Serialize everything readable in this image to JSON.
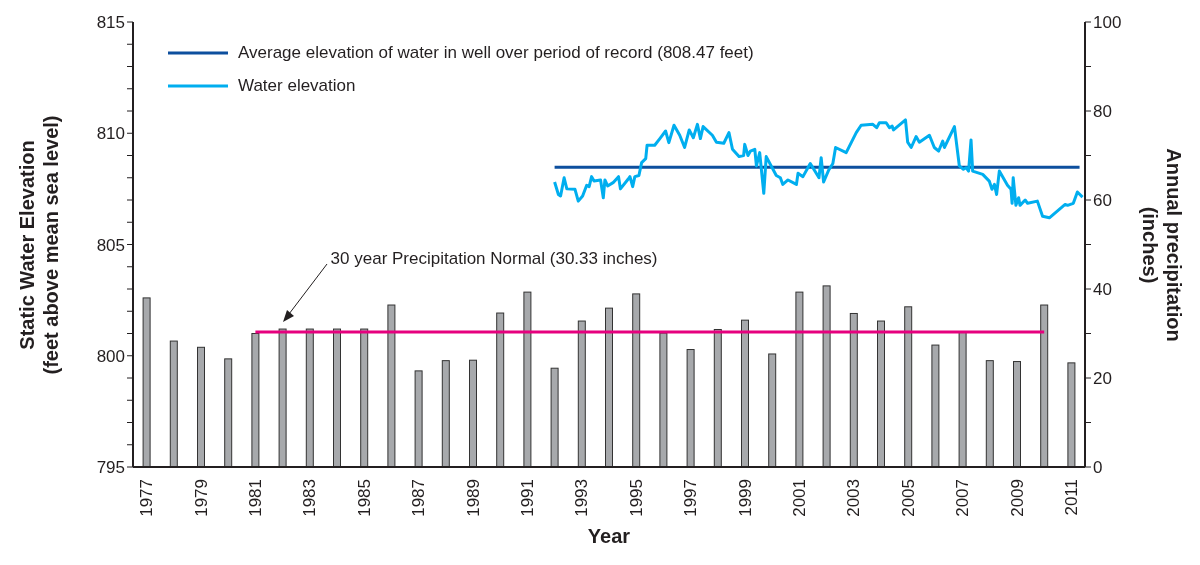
{
  "chart_data": {
    "type": "bar",
    "xlabel": "Year",
    "ylabel": "Static Water Elevation\n(feet above mean sea level)",
    "y2label": "Annual precipitation\n(inches)",
    "x": [
      1977,
      1978,
      1979,
      1980,
      1981,
      1982,
      1983,
      1984,
      1985,
      1986,
      1987,
      1988,
      1989,
      1990,
      1991,
      1992,
      1993,
      1994,
      1995,
      1996,
      1997,
      1998,
      1999,
      2000,
      2001,
      2002,
      2003,
      2004,
      2005,
      2006,
      2007,
      2008,
      2009,
      2010,
      2011
    ],
    "xlim": [
      1976.5,
      2011.5
    ],
    "xticks": [
      1977,
      1979,
      1981,
      1983,
      1985,
      1987,
      1989,
      1991,
      1993,
      1995,
      1997,
      1999,
      2001,
      2003,
      2005,
      2007,
      2009,
      2011
    ],
    "ylim": [
      795,
      815
    ],
    "yticks": [
      795,
      {
        "value": 796,
        "label": null
      },
      {
        "value": 797,
        "label": null
      },
      {
        "value": 798,
        "label": null
      },
      {
        "value": 799,
        "label": null
      },
      800,
      {
        "value": 801,
        "label": null
      },
      {
        "value": 802,
        "label": null
      },
      {
        "value": 803,
        "label": null
      },
      {
        "value": 804,
        "label": null
      },
      805,
      {
        "value": 806,
        "label": null
      },
      {
        "value": 807,
        "label": null
      },
      {
        "value": 808,
        "label": null
      },
      {
        "value": 809,
        "label": null
      },
      810,
      {
        "value": 811,
        "label": null
      },
      {
        "value": 812,
        "label": null
      },
      {
        "value": 813,
        "label": null
      },
      {
        "value": 814,
        "label": null
      },
      815
    ],
    "y2lim": [
      0,
      100
    ],
    "y2ticks": [
      0,
      {
        "value": 10,
        "label": null
      },
      20,
      {
        "value": 30,
        "label": null
      },
      40,
      {
        "value": 50,
        "label": null
      },
      60,
      {
        "value": 70,
        "label": null
      },
      80,
      {
        "value": 90,
        "label": null
      },
      100
    ],
    "legend": "top left",
    "marker": "none",
    "line_style": "solid",
    "annotations": [
      "30 year Precipitation Normal (30.33 inches)"
    ],
    "series": [
      {
        "axis": "y2",
        "color": "#a7a9ac",
        "values": [
          38.0,
          28.3,
          26.9,
          24.3,
          30.0,
          31.0,
          31.0,
          31.0,
          31.0,
          36.4,
          21.6,
          23.9,
          24.0,
          34.6,
          39.3,
          22.2,
          32.8,
          35.7,
          38.9,
          30.1,
          26.4,
          30.9,
          33.0,
          25.4,
          39.3,
          40.7,
          34.5,
          32.8,
          36.0,
          27.4,
          30.3,
          23.9,
          23.7,
          36.4,
          23.4
        ]
      },
      {
        "name": "Average elevation of water in well over period of record (808.47 feet)",
        "type": "line",
        "color": "#0d4f9e",
        "x": [
          1992.0,
          2011.3
        ],
        "values": [
          808.47,
          808.47
        ]
      },
      {
        "name": "Water elevation",
        "type": "line",
        "color": "#00aeef",
        "x": [
          1992.0,
          1992.14,
          1992.22,
          1992.35,
          1992.45,
          1992.75,
          1992.87,
          1993.03,
          1993.18,
          1993.27,
          1993.36,
          1993.45,
          1993.69,
          1993.79,
          1993.85,
          1993.95,
          1994.15,
          1994.35,
          1994.42,
          1994.7,
          1994.77,
          1994.87,
          1994.95,
          1995.1,
          1995.2,
          1995.35,
          1995.4,
          1995.68,
          1995.87,
          1996.08,
          1996.2,
          1996.39,
          1996.6,
          1996.78,
          1996.95,
          1997.1,
          1997.25,
          1997.36,
          1997.46,
          1997.8,
          1997.95,
          1998.22,
          1998.41,
          1998.54,
          1998.78,
          1998.95,
          1998.99,
          1999.11,
          1999.2,
          1999.36,
          1999.42,
          1999.54,
          1999.69,
          1999.78,
          2000.15,
          2000.3,
          2000.39,
          2000.58,
          2000.89,
          2000.95,
          2001.13,
          2001.4,
          2001.72,
          2001.8,
          2001.89,
          2002.08,
          2002.23,
          2002.33,
          2002.72,
          2003.09,
          2003.27,
          2003.7,
          2003.84,
          2003.94,
          2004.19,
          2004.31,
          2004.41,
          2004.46,
          2004.9,
          2004.98,
          2005.11,
          2005.29,
          2005.41,
          2005.78,
          2005.96,
          2006.12,
          2006.27,
          2006.33,
          2006.7,
          2006.88,
          2007.03,
          2007.13,
          2007.22,
          2007.31,
          2007.37,
          2007.74,
          2007.98,
          2008.08,
          2008.17,
          2008.25,
          2008.35,
          2008.65,
          2008.78,
          2008.82,
          2008.86,
          2008.96,
          2009.06,
          2009.11,
          2009.3,
          2009.39,
          2009.75,
          2009.94,
          2010.19,
          2010.77,
          2010.86,
          2011.07,
          2011.22,
          2011.41
        ],
        "values": [
          807.81,
          807.25,
          807.18,
          808.0,
          807.5,
          807.48,
          806.95,
          807.18,
          807.66,
          807.6,
          808.05,
          807.85,
          807.9,
          807.1,
          807.9,
          807.63,
          807.78,
          808.05,
          807.5,
          807.93,
          808.05,
          807.6,
          808.05,
          808.1,
          808.68,
          808.86,
          809.46,
          809.46,
          809.76,
          810.1,
          809.58,
          810.36,
          809.91,
          809.36,
          810.15,
          809.8,
          810.4,
          809.76,
          810.3,
          809.91,
          809.6,
          809.55,
          810.03,
          809.28,
          808.95,
          809.0,
          809.5,
          809.0,
          809.2,
          809.28,
          808.53,
          809.13,
          807.3,
          808.95,
          808.1,
          808.0,
          807.7,
          807.9,
          807.7,
          808.2,
          808.05,
          808.64,
          808.0,
          808.9,
          807.81,
          808.35,
          808.64,
          809.36,
          809.13,
          810.03,
          810.36,
          810.4,
          810.25,
          810.47,
          810.47,
          810.25,
          810.32,
          810.15,
          810.6,
          809.6,
          809.36,
          809.85,
          809.6,
          809.91,
          809.36,
          809.2,
          809.65,
          809.36,
          810.3,
          808.53,
          808.38,
          808.45,
          808.3,
          809.7,
          808.3,
          808.15,
          807.85,
          807.48,
          807.7,
          807.25,
          808.3,
          807.66,
          807.48,
          806.85,
          808.0,
          806.76,
          807.1,
          806.76,
          807.0,
          806.85,
          806.95,
          806.27,
          806.2,
          806.8,
          806.76,
          806.85,
          807.36,
          807.13
        ]
      },
      {
        "type": "line",
        "axis": "y2",
        "color": "#e6007e",
        "x": [
          1981,
          2010
        ],
        "values": [
          30.33,
          30.33
        ]
      }
    ]
  }
}
